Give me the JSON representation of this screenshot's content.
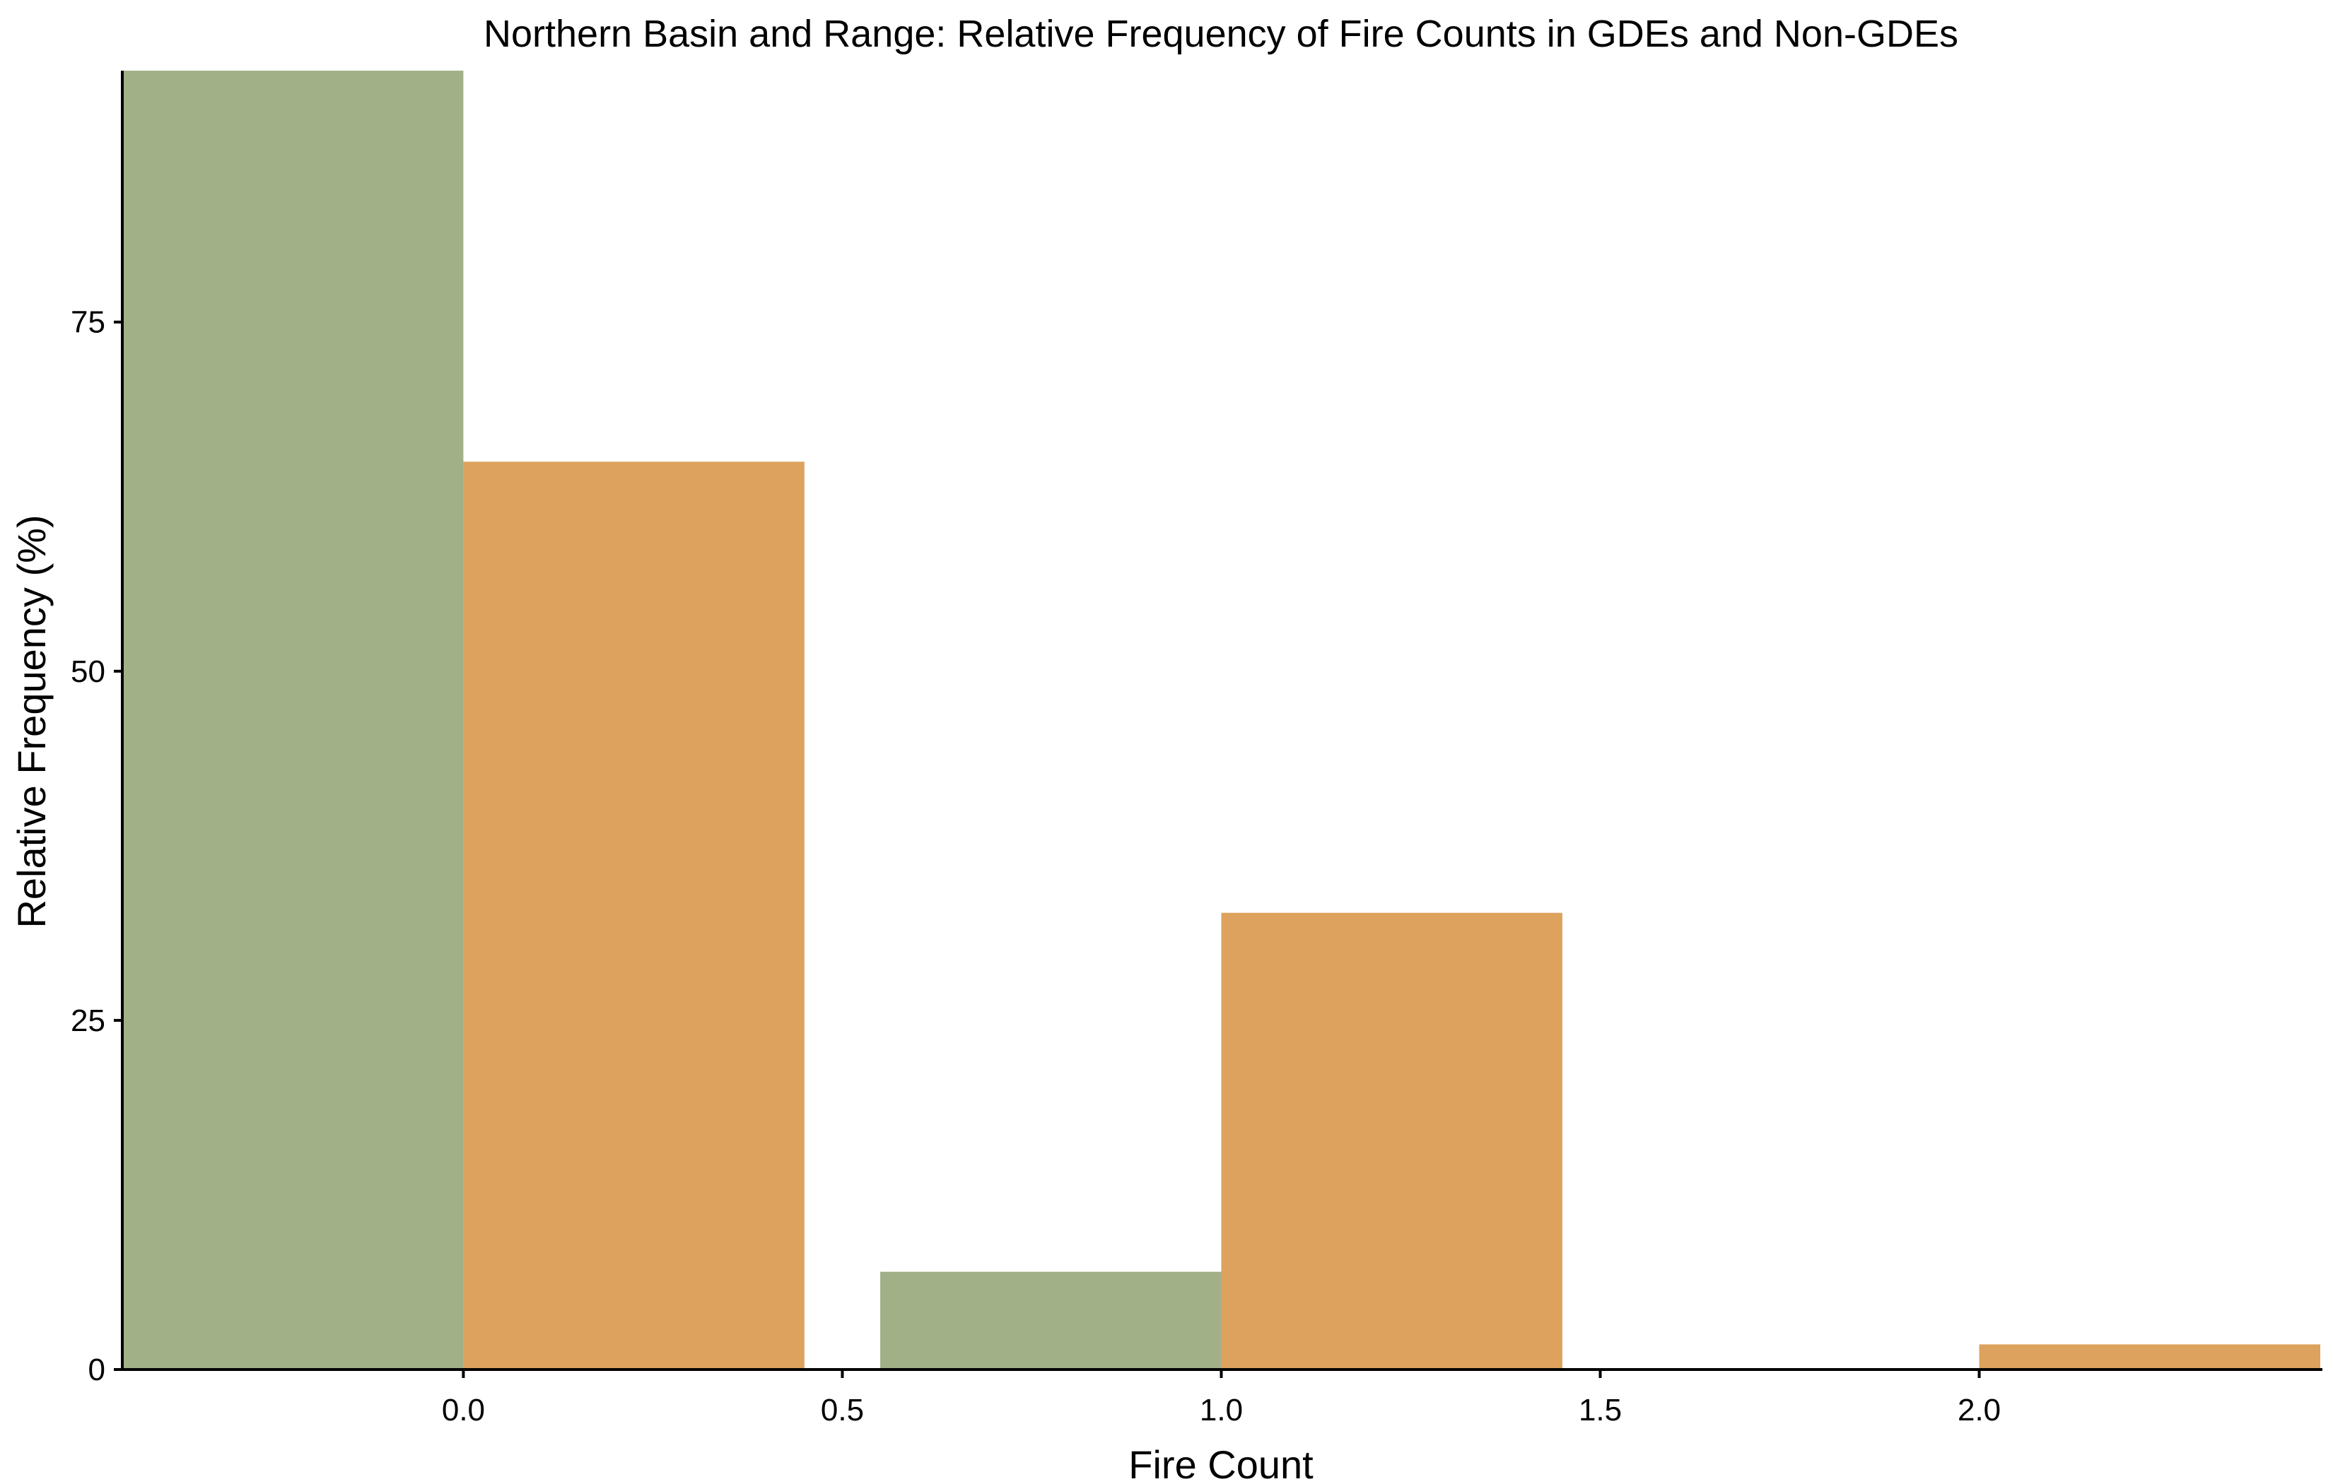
{
  "chart_data": {
    "type": "bar",
    "title": "Northern Basin and Range: Relative Frequency of Fire Counts in GDEs and Non-GDEs",
    "xlabel": "Fire Count",
    "ylabel": "Relative Frequency (%)",
    "xlim": [
      -0.45,
      2.45
    ],
    "ylim": [
      0,
      93
    ],
    "x_ticks": [
      0.0,
      0.5,
      1.0,
      1.5,
      2.0
    ],
    "x_tick_labels": [
      "0.0",
      "0.5",
      "1.0",
      "1.5",
      "2.0"
    ],
    "y_ticks": [
      0,
      25,
      50,
      75
    ],
    "y_tick_labels": [
      "0",
      "25",
      "50",
      "75"
    ],
    "grid": false,
    "legend": "none",
    "bars": [
      {
        "x0": -0.45,
        "x1": 0.0,
        "value": 93.0,
        "color": "#a2b088"
      },
      {
        "x0": 0.0,
        "x1": 0.45,
        "value": 65.0,
        "color": "#dda25d"
      },
      {
        "x0": 0.55,
        "x1": 1.0,
        "value": 7.0,
        "color": "#a2b088"
      },
      {
        "x0": 1.0,
        "x1": 1.45,
        "value": 32.7,
        "color": "#dda25d"
      },
      {
        "x0": 1.55,
        "x1": 2.0,
        "value": 0.0,
        "color": "#a2b088"
      },
      {
        "x0": 2.0,
        "x1": 2.45,
        "value": 1.8,
        "color": "#dda25d"
      }
    ]
  }
}
